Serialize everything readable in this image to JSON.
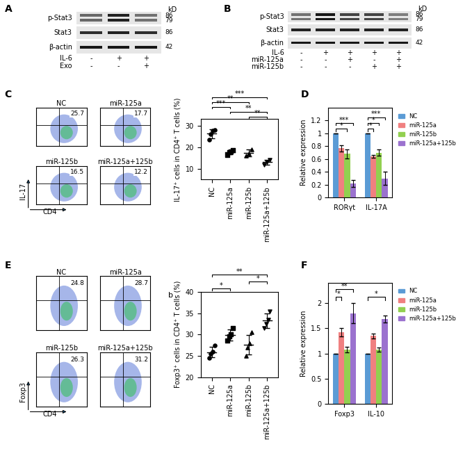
{
  "blots": [
    {
      "panel": "A",
      "unit": "kD",
      "rows": [
        {
          "name": "p-Stat3",
          "markers": [
            86,
            79
          ],
          "intensity": [
            0.55,
            0.85,
            0.5
          ]
        },
        {
          "name": "Stat3",
          "markers": [
            86
          ],
          "intensity": [
            0.8,
            0.85,
            0.8
          ]
        },
        {
          "name": "β-actin",
          "markers": [
            42
          ],
          "intensity": [
            0.9,
            0.9,
            0.9
          ]
        }
      ],
      "conditions": [
        {
          "name": "IL-6",
          "signs": [
            "-",
            "+",
            "+"
          ]
        },
        {
          "name": "Exo",
          "signs": [
            "-",
            "-",
            "+"
          ]
        }
      ]
    },
    {
      "panel": "B",
      "unit": "kD",
      "rows": [
        {
          "name": "p-Stat3",
          "markers": [
            86,
            79
          ],
          "intensity": [
            0.5,
            0.9,
            0.7,
            0.7,
            0.45
          ]
        },
        {
          "name": "Stat3",
          "markers": [
            86
          ],
          "intensity": [
            0.85,
            0.85,
            0.85,
            0.85,
            0.85
          ]
        },
        {
          "name": "β-actin",
          "markers": [
            42
          ],
          "intensity": [
            0.9,
            0.9,
            0.9,
            0.9,
            0.9
          ]
        }
      ],
      "conditions": [
        {
          "name": "IL-6",
          "signs": [
            "-",
            "+",
            "+",
            "+",
            "+"
          ]
        },
        {
          "name": "miR-125a",
          "signs": [
            "-",
            "-",
            "+",
            "-",
            "+"
          ]
        },
        {
          "name": "miR-125b",
          "signs": [
            "-",
            "-",
            "-",
            "+",
            "+"
          ]
        }
      ]
    }
  ],
  "flow": [
    {
      "panel": "C",
      "x_label": "CD4",
      "y_label": "IL-17",
      "plots": [
        {
          "name": "NC",
          "percent": 25.7
        },
        {
          "name": "miR-125a",
          "percent": 17.7
        },
        {
          "name": "miR-125b",
          "percent": 16.5
        },
        {
          "name": "miR-125a+125b",
          "percent": 12.2
        }
      ]
    },
    {
      "panel": "E",
      "x_label": "CD4",
      "y_label": "Foxp3",
      "plots": [
        {
          "name": "NC",
          "percent": 24.8
        },
        {
          "name": "miR-125a",
          "percent": 28.7
        },
        {
          "name": "miR-125b",
          "percent": 26.3
        },
        {
          "name": "miR-125a+125b",
          "percent": 31.2
        }
      ]
    }
  ],
  "chart_data": [
    {
      "type": "scatter",
      "y_label": "IL-17⁺ cells in CD4⁺ T cells (%)",
      "ylim": [
        5,
        33
      ],
      "yticks": [
        10,
        20,
        30
      ],
      "color": "#000000",
      "series": [
        {
          "name": "NC",
          "marker": "circle",
          "values": [
            23.5,
            26,
            27.5,
            28
          ]
        },
        {
          "name": "miR-125a",
          "marker": "square",
          "values": [
            16.5,
            17.5,
            18,
            18.5
          ]
        },
        {
          "name": "miR-125b",
          "marker": "triangle",
          "values": [
            16,
            17,
            19
          ]
        },
        {
          "name": "miR-125a+125b",
          "marker": "triangle_down",
          "values": [
            12,
            13,
            14
          ]
        }
      ],
      "significance": [
        {
          "pair": [
            "miR-125b",
            "miR-125a+125b"
          ],
          "label": "**"
        },
        {
          "pair": [
            "miR-125a",
            "miR-125a+125b"
          ],
          "label": "**"
        },
        {
          "pair": [
            "NC",
            "miR-125a"
          ],
          "label": "***"
        },
        {
          "pair": [
            "NC",
            "miR-125b"
          ],
          "label": "**"
        },
        {
          "pair": [
            "NC",
            "miR-125a+125b"
          ],
          "label": "***"
        }
      ]
    },
    {
      "type": "bar",
      "y_label": "Relative expression",
      "legend": "right",
      "categories": [
        "RORγt",
        "IL-17A"
      ],
      "ylim": [
        0,
        1.4
      ],
      "yticks": [
        0,
        0.2,
        0.4,
        0.6,
        0.8,
        1,
        1.2
      ],
      "series": [
        {
          "name": "NC",
          "color": "#5b9bd5",
          "values": [
            1,
            1
          ],
          "errors": [
            0,
            0
          ]
        },
        {
          "name": "miR-125a",
          "color": "#f08080",
          "values": [
            0.77,
            0.64
          ],
          "errors": [
            0.05,
            0.02
          ]
        },
        {
          "name": "miR-125b",
          "color": "#92d050",
          "values": [
            0.68,
            0.7
          ],
          "errors": [
            0.07,
            0.05
          ]
        },
        {
          "name": "miR-125a+125b",
          "color": "#9b72cf",
          "values": [
            0.22,
            0.3
          ],
          "errors": [
            0.05,
            0.1
          ]
        }
      ],
      "significance": [
        {
          "category": "RORγt",
          "pair": [
            "NC",
            "miR-125b"
          ],
          "label": "*"
        },
        {
          "category": "RORγt",
          "pair": [
            "NC",
            "miR-125a+125b"
          ],
          "label": "***"
        },
        {
          "category": "IL-17A",
          "pair": [
            "NC",
            "miR-125a"
          ],
          "label": "*"
        },
        {
          "category": "IL-17A",
          "pair": [
            "NC",
            "miR-125b"
          ],
          "label": "*"
        },
        {
          "category": "IL-17A",
          "pair": [
            "NC",
            "miR-125a+125b"
          ],
          "label": "***"
        }
      ]
    },
    {
      "type": "scatter",
      "y_label": "Foxp3⁺ cells in CD4⁺ T cells (%)",
      "annotation": "b",
      "ylim": [
        20,
        40
      ],
      "yticks": [
        20,
        25,
        30,
        35,
        40
      ],
      "color": "#000000",
      "series": [
        {
          "name": "NC",
          "marker": "circle",
          "values": [
            24.5,
            25.5,
            26,
            27.5
          ]
        },
        {
          "name": "miR-125a",
          "marker": "square",
          "values": [
            28.5,
            29.5,
            30,
            31.5
          ]
        },
        {
          "name": "miR-125b",
          "marker": "triangle",
          "values": [
            25,
            27,
            28,
            30.5
          ]
        },
        {
          "name": "miR-125a+125b",
          "marker": "triangle_down",
          "values": [
            31.5,
            32.5,
            33.5,
            35.5
          ]
        }
      ],
      "significance": [
        {
          "pair": [
            "NC",
            "miR-125a"
          ],
          "label": "*"
        },
        {
          "pair": [
            "miR-125b",
            "miR-125a+125b"
          ],
          "label": "*"
        },
        {
          "pair": [
            "NC",
            "miR-125a+125b"
          ],
          "label": "**"
        }
      ]
    },
    {
      "type": "bar",
      "y_label": "Relative expression",
      "legend": "right",
      "categories": [
        "Foxp3",
        "IL-10"
      ],
      "ylim": [
        0,
        2.4
      ],
      "yticks": [
        0,
        0.5,
        1,
        1.5,
        2
      ],
      "series": [
        {
          "name": "NC",
          "color": "#5b9bd5",
          "values": [
            1,
            1
          ],
          "errors": [
            0,
            0
          ]
        },
        {
          "name": "miR-125a",
          "color": "#f08080",
          "values": [
            1.42,
            1.35
          ],
          "errors": [
            0.08,
            0.05
          ]
        },
        {
          "name": "miR-125b",
          "color": "#92d050",
          "values": [
            1.08,
            1.08
          ],
          "errors": [
            0.05,
            0.04
          ]
        },
        {
          "name": "miR-125a+125b",
          "color": "#9b72cf",
          "values": [
            1.8,
            1.68
          ],
          "errors": [
            0.2,
            0.07
          ]
        }
      ],
      "significance": [
        {
          "category": "Foxp3",
          "pair": [
            "NC",
            "miR-125a"
          ],
          "label": "*"
        },
        {
          "category": "Foxp3",
          "pair": [
            "NC",
            "miR-125a+125b"
          ],
          "label": "**"
        },
        {
          "category": "IL-10",
          "pair": [
            "NC",
            "miR-125a+125b"
          ],
          "label": "*"
        }
      ]
    }
  ],
  "panel_labels": [
    "A",
    "B",
    "C",
    "D",
    "E",
    "F"
  ]
}
